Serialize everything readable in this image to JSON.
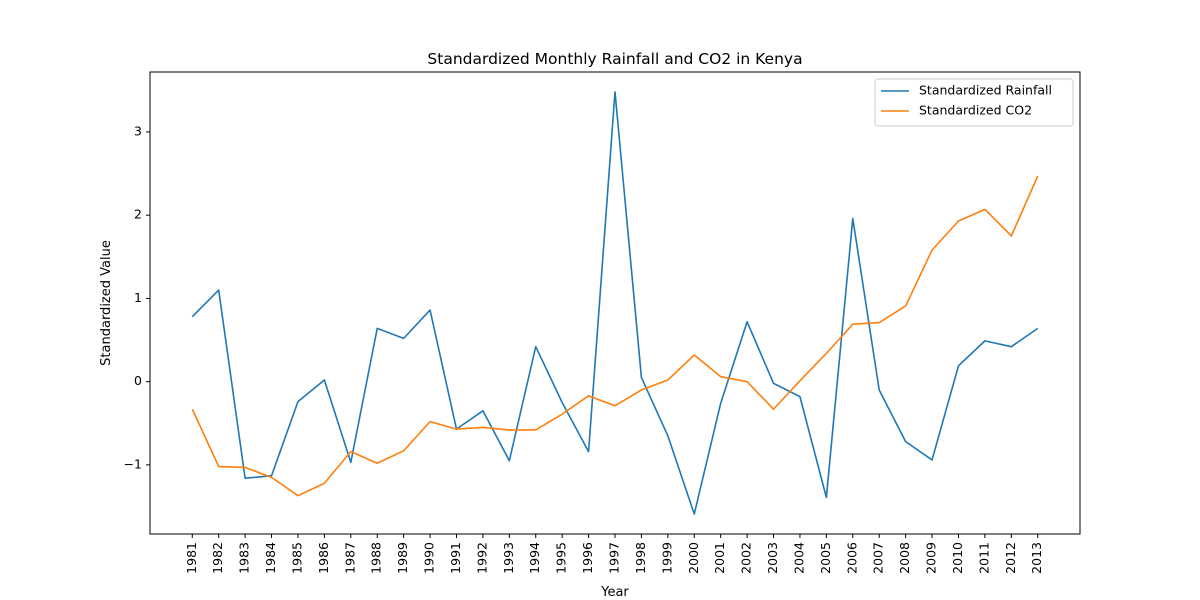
{
  "chart_data": {
    "type": "line",
    "title": "Standardized Monthly Rainfall and CO2 in Kenya",
    "xlabel": "Year",
    "ylabel": "Standardized Value",
    "x": [
      1981,
      1982,
      1983,
      1984,
      1985,
      1986,
      1987,
      1988,
      1989,
      1990,
      1991,
      1992,
      1993,
      1994,
      1995,
      1996,
      1997,
      1998,
      1999,
      2000,
      2001,
      2002,
      2003,
      2004,
      2005,
      2006,
      2007,
      2008,
      2009,
      2010,
      2011,
      2012,
      2013
    ],
    "x_tick_labels": [
      "1981",
      "1982",
      "1983",
      "1984",
      "1985",
      "1986",
      "1987",
      "1988",
      "1989",
      "1990",
      "1991",
      "1992",
      "1993",
      "1994",
      "1995",
      "1996",
      "1997",
      "1998",
      "1999",
      "2000",
      "2001",
      "2002",
      "2003",
      "2004",
      "2005",
      "2006",
      "2007",
      "2008",
      "2009",
      "2010",
      "2011",
      "2012",
      "2013"
    ],
    "y_ticks": [
      -1,
      0,
      1,
      2,
      3
    ],
    "y_tick_labels": [
      "−1",
      "0",
      "1",
      "2",
      "3"
    ],
    "ylim": [
      -1.83,
      3.72
    ],
    "xlim": [
      1979.4,
      2014.6
    ],
    "grid": false,
    "legend_position": "top-right",
    "series": [
      {
        "name": "Standardized Rainfall",
        "color": "#1f77b4",
        "values": [
          0.78,
          1.1,
          -1.16,
          -1.13,
          -0.24,
          0.02,
          -0.97,
          0.64,
          0.52,
          0.86,
          -0.57,
          -0.35,
          -0.95,
          0.42,
          -0.25,
          -0.84,
          3.48,
          0.05,
          -0.65,
          -1.59,
          -0.26,
          0.72,
          -0.02,
          -0.18,
          -1.39,
          1.96,
          -0.1,
          -0.72,
          -0.94,
          0.19,
          0.49,
          0.42,
          0.64
        ]
      },
      {
        "name": "Standardized CO2",
        "color": "#ff7f0e",
        "values": [
          -0.33,
          -1.02,
          -1.03,
          -1.15,
          -1.37,
          -1.22,
          -0.84,
          -0.98,
          -0.83,
          -0.48,
          -0.57,
          -0.55,
          -0.58,
          -0.58,
          -0.39,
          -0.17,
          -0.29,
          -0.1,
          0.02,
          0.32,
          0.06,
          0.0,
          -0.33,
          0.01,
          0.34,
          0.69,
          0.71,
          0.91,
          1.58,
          1.93,
          2.07,
          1.75,
          2.47
        ]
      }
    ]
  }
}
